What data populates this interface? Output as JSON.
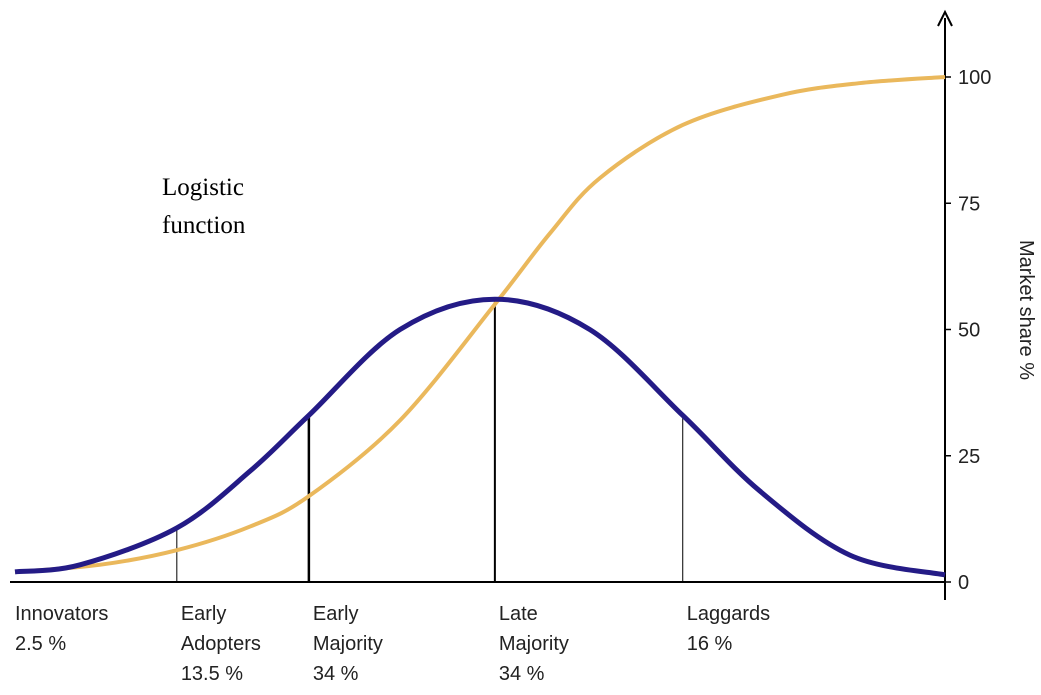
{
  "chart_data": {
    "type": "line",
    "annotation": "Logistic function",
    "y_label": "Market share %",
    "xlim": [
      0,
      100
    ],
    "ylim": [
      0,
      100
    ],
    "yticks": [
      0,
      25,
      50,
      75,
      100
    ],
    "series": [
      {
        "color": "#eab85c",
        "x": [
          0,
          9.1,
          17.4,
          25.3,
          31.6,
          41.4,
          51.6,
          57.5,
          62.9,
          71.8,
          82.3,
          90.9,
          100
        ],
        "values": [
          2,
          3.4,
          6.3,
          11,
          17,
          32,
          55,
          69,
          80,
          90.5,
          96.4,
          98.8,
          100
        ]
      },
      {
        "color": "#241b86",
        "x": [
          0,
          7,
          17.4,
          25.3,
          31.6,
          41.4,
          51.6,
          61.8,
          71.8,
          80.1,
          89.8,
          100
        ],
        "values": [
          2,
          3.4,
          10.7,
          22,
          33,
          50,
          56,
          50,
          33,
          18,
          5.3,
          1.4
        ]
      }
    ],
    "dividers": [
      {
        "x": 17.4,
        "top": 10.7
      },
      {
        "x": 31.6,
        "top": 33
      },
      {
        "x": 51.6,
        "top": 56
      },
      {
        "x": 71.8,
        "top": 33
      }
    ],
    "categories": [
      "Innovators",
      "Early Adopters",
      "Early Majority",
      "Late Majority",
      "Laggards"
    ],
    "values": [
      2.5,
      13.5,
      34,
      34,
      16
    ],
    "value_labels": [
      "2.5 %",
      "13.5 %",
      "34 %",
      "34 %",
      "16 %"
    ]
  }
}
